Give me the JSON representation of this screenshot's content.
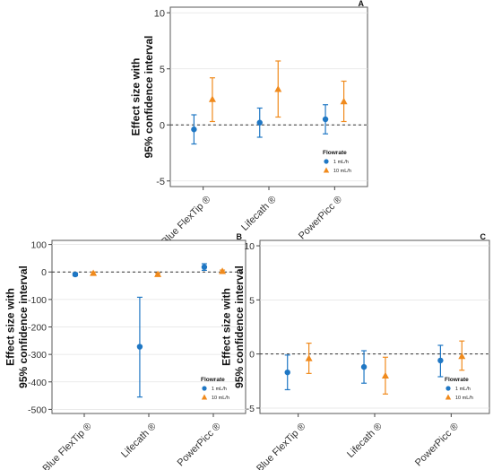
{
  "chart_data": [
    {
      "type": "scatter",
      "panel": "A",
      "ylabel": [
        "Effect size with",
        "95% confidence interval"
      ],
      "categories": [
        "Blue FlexTip ®",
        "Lifecath ®",
        "PowerPicc ®"
      ],
      "ylim": [
        -5.5,
        10.5
      ],
      "yticks": [
        -5,
        0,
        5,
        10
      ],
      "reference_line": 0,
      "grid": "horizontal",
      "legend": {
        "title": "Flowrate",
        "position": "bottom-right"
      },
      "series": [
        {
          "name": "1 mL/h",
          "color": "#1f77c4",
          "marker": "circle",
          "values": [
            -0.4,
            0.2,
            0.5
          ],
          "lower": [
            -1.7,
            -1.1,
            -0.8
          ],
          "upper": [
            0.9,
            1.5,
            1.8
          ]
        },
        {
          "name": "10 mL/h",
          "color": "#f08a1c",
          "marker": "triangle",
          "values": [
            2.3,
            3.2,
            2.1
          ],
          "lower": [
            0.3,
            0.7,
            0.3
          ],
          "upper": [
            4.2,
            5.7,
            3.9
          ]
        }
      ]
    },
    {
      "type": "scatter",
      "panel": "B",
      "ylabel": [
        "Effect size with",
        "95% confidence interval"
      ],
      "categories": [
        "Blue FlexTip ®",
        "Lifecath ®",
        "PowerPicc ®"
      ],
      "ylim": [
        -515,
        115
      ],
      "yticks": [
        -500,
        -400,
        -300,
        -200,
        -100,
        0,
        100
      ],
      "reference_line": 0,
      "grid": "horizontal",
      "legend": {
        "title": "Flowrate",
        "position": "bottom-right"
      },
      "series": [
        {
          "name": "1 mL/h",
          "color": "#1f77c4",
          "marker": "circle",
          "values": [
            -9,
            -272,
            18
          ],
          "lower": [
            -14,
            -455,
            6
          ],
          "upper": [
            -4,
            -92,
            30
          ]
        },
        {
          "name": "10 mL/h",
          "color": "#f08a1c",
          "marker": "triangle",
          "values": [
            -4,
            -8,
            3
          ],
          "lower": [
            -8,
            -12,
            -1
          ],
          "upper": [
            0,
            -4,
            7
          ]
        }
      ]
    },
    {
      "type": "scatter",
      "panel": "C",
      "ylabel": [
        "Effect size with",
        "95% confidence interval"
      ],
      "categories": [
        "Blue FlexTip ®",
        "Lifecath ®",
        "PowerPicc ®"
      ],
      "ylim": [
        -5.5,
        10.5
      ],
      "yticks": [
        -5,
        0,
        5,
        10
      ],
      "reference_line": 0,
      "grid": "horizontal",
      "legend": {
        "title": "Flowrate",
        "position": "bottom-right"
      },
      "series": [
        {
          "name": "1 mL/h",
          "color": "#1f77c4",
          "marker": "circle",
          "values": [
            -1.7,
            -1.2,
            -0.6
          ],
          "lower": [
            -3.3,
            -2.7,
            -2.1
          ],
          "upper": [
            -0.1,
            0.3,
            0.8
          ]
        },
        {
          "name": "10 mL/h",
          "color": "#f08a1c",
          "marker": "triangle",
          "values": [
            -0.4,
            -2.0,
            -0.2
          ],
          "lower": [
            -1.8,
            -3.7,
            -1.5
          ],
          "upper": [
            1.0,
            -0.3,
            1.2
          ]
        }
      ]
    }
  ]
}
